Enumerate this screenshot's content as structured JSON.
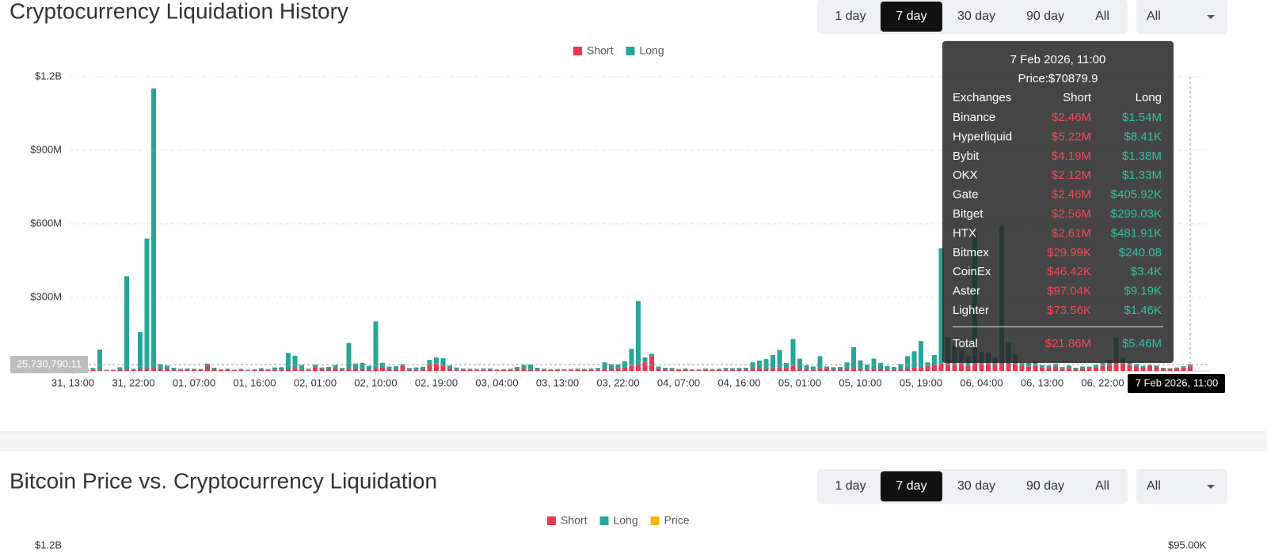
{
  "panels": [
    {
      "title": "Cryptocurrency Liquidation History",
      "ranges": [
        "1 day",
        "7 day",
        "30 day",
        "90 day",
        "All"
      ],
      "active_range": 1,
      "dropdown": "All"
    },
    {
      "title": "Bitcoin Price vs. Cryptocurrency Liquidation",
      "ranges": [
        "1 day",
        "7 day",
        "30 day",
        "90 day",
        "All"
      ],
      "active_range": 1,
      "dropdown": "All"
    }
  ],
  "chart_data": [
    {
      "type": "bar",
      "stacked": true,
      "grid": true,
      "categories": [
        "31, 13:00",
        null,
        null,
        null,
        null,
        null,
        null,
        null,
        null,
        "31, 22:00",
        null,
        null,
        null,
        null,
        null,
        null,
        null,
        null,
        "01, 07:00",
        null,
        null,
        null,
        null,
        null,
        null,
        null,
        null,
        "01, 16:00",
        null,
        null,
        null,
        null,
        null,
        null,
        null,
        null,
        "02, 01:00",
        null,
        null,
        null,
        null,
        null,
        null,
        null,
        null,
        "02, 10:00",
        null,
        null,
        null,
        null,
        null,
        null,
        null,
        null,
        "02, 19:00",
        null,
        null,
        null,
        null,
        null,
        null,
        null,
        null,
        "03, 04:00",
        null,
        null,
        null,
        null,
        null,
        null,
        null,
        null,
        "03, 13:00",
        null,
        null,
        null,
        null,
        null,
        null,
        null,
        null,
        "03, 22:00",
        null,
        null,
        null,
        null,
        null,
        null,
        null,
        null,
        "04, 07:00",
        null,
        null,
        null,
        null,
        null,
        null,
        null,
        null,
        "04, 16:00",
        null,
        null,
        null,
        null,
        null,
        null,
        null,
        null,
        "05, 01:00",
        null,
        null,
        null,
        null,
        null,
        null,
        null,
        null,
        "05, 10:00",
        null,
        null,
        null,
        null,
        null,
        null,
        null,
        null,
        "05, 19:00",
        null,
        null,
        null,
        null,
        null,
        null,
        null,
        null,
        "06, 04:00",
        null,
        null,
        null,
        null,
        null,
        null,
        null,
        null,
        "06, 13:00",
        null,
        null,
        null,
        null,
        null,
        null,
        null,
        null,
        "06, 22:00",
        null,
        null,
        null,
        null,
        null,
        null,
        null,
        null,
        null,
        null,
        null,
        null,
        null
      ],
      "series": [
        {
          "name": "Short",
          "color": "#e8384f",
          "values": [
            2000000,
            3000000,
            2000000,
            4000000,
            3000000,
            2000000,
            3000000,
            5000000,
            6000000,
            4000000,
            8000000,
            10000000,
            12000000,
            8000000,
            10000000,
            5000000,
            4000000,
            6000000,
            3000000,
            5000000,
            22000000,
            8000000,
            4000000,
            5000000,
            3000000,
            4000000,
            2000000,
            3000000,
            5000000,
            4000000,
            6000000,
            5000000,
            8000000,
            12000000,
            6000000,
            4000000,
            15000000,
            10000000,
            8000000,
            12000000,
            6000000,
            9000000,
            10000000,
            8000000,
            6000000,
            12000000,
            15000000,
            8000000,
            5000000,
            20000000,
            6000000,
            4000000,
            8000000,
            25000000,
            30000000,
            22000000,
            10000000,
            6000000,
            4000000,
            5000000,
            3000000,
            4000000,
            6000000,
            3000000,
            5000000,
            4000000,
            8000000,
            10000000,
            6000000,
            5000000,
            4000000,
            3000000,
            5000000,
            2000000,
            4000000,
            3000000,
            5000000,
            6000000,
            4000000,
            10000000,
            8000000,
            12000000,
            15000000,
            20000000,
            25000000,
            35000000,
            60000000,
            10000000,
            8000000,
            6000000,
            4000000,
            5000000,
            3000000,
            2000000,
            4000000,
            3000000,
            5000000,
            4000000,
            6000000,
            8000000,
            5000000,
            10000000,
            12000000,
            8000000,
            10000000,
            15000000,
            12000000,
            20000000,
            10000000,
            8000000,
            6000000,
            10000000,
            12000000,
            5000000,
            8000000,
            10000000,
            12000000,
            8000000,
            6000000,
            10000000,
            8000000,
            5000000,
            6000000,
            8000000,
            10000000,
            15000000,
            12000000,
            20000000,
            25000000,
            30000000,
            28000000,
            25000000,
            30000000,
            22000000,
            35000000,
            28000000,
            30000000,
            25000000,
            40000000,
            35000000,
            28000000,
            22000000,
            18000000,
            20000000,
            15000000,
            12000000,
            18000000,
            10000000,
            12000000,
            8000000,
            10000000,
            12000000,
            15000000,
            20000000,
            25000000,
            55000000,
            30000000,
            22000000,
            18000000,
            15000000,
            20000000,
            18000000,
            10000000,
            8000000,
            12000000,
            15000000,
            21860000
          ]
        },
        {
          "name": "Long",
          "color": "#26a69a",
          "values": [
            2000000,
            3000000,
            4000000,
            8000000,
            84000000,
            3000000,
            2000000,
            10000000,
            380000000,
            5000000,
            150000000,
            530000000,
            1140000000,
            20000000,
            12000000,
            8000000,
            5000000,
            4000000,
            6000000,
            3000000,
            8000000,
            5000000,
            3000000,
            4000000,
            2000000,
            5000000,
            3000000,
            4000000,
            6000000,
            4000000,
            8000000,
            10000000,
            65000000,
            50000000,
            18000000,
            5000000,
            10000000,
            4000000,
            8000000,
            12000000,
            6000000,
            105000000,
            20000000,
            25000000,
            15000000,
            190000000,
            18000000,
            10000000,
            14000000,
            8000000,
            6000000,
            10000000,
            9000000,
            20000000,
            25000000,
            30000000,
            12000000,
            8000000,
            6000000,
            4000000,
            5000000,
            6000000,
            4000000,
            3000000,
            2000000,
            5000000,
            8000000,
            15000000,
            20000000,
            8000000,
            5000000,
            4000000,
            3000000,
            5000000,
            4000000,
            6000000,
            3000000,
            4000000,
            8000000,
            25000000,
            20000000,
            15000000,
            25000000,
            70000000,
            260000000,
            20000000,
            10000000,
            8000000,
            5000000,
            6000000,
            4000000,
            5000000,
            3000000,
            4000000,
            6000000,
            5000000,
            4000000,
            8000000,
            5000000,
            4000000,
            8000000,
            25000000,
            30000000,
            40000000,
            55000000,
            70000000,
            20000000,
            110000000,
            40000000,
            15000000,
            12000000,
            50000000,
            6000000,
            10000000,
            8000000,
            25000000,
            85000000,
            35000000,
            20000000,
            40000000,
            25000000,
            15000000,
            10000000,
            20000000,
            50000000,
            65000000,
            110000000,
            15000000,
            40000000,
            470000000,
            110000000,
            80000000,
            60000000,
            40000000,
            530000000,
            50000000,
            45000000,
            30000000,
            550000000,
            80000000,
            40000000,
            10000000,
            15000000,
            20000000,
            8000000,
            10000000,
            12000000,
            6000000,
            10000000,
            5000000,
            8000000,
            6000000,
            10000000,
            15000000,
            20000000,
            80000000,
            25000000,
            15000000,
            10000000,
            6000000,
            5000000,
            4000000,
            3000000,
            3000000,
            2000000,
            4000000,
            5460000
          ]
        }
      ],
      "ylim": [
        0,
        1200000000
      ],
      "yticks": [
        {
          "value": 300000000,
          "label": "$300M"
        },
        {
          "value": 600000000,
          "label": "$600M"
        },
        {
          "value": 900000000,
          "label": "$900M"
        },
        {
          "value": 1200000000,
          "label": "$1.2B"
        }
      ],
      "crosshair": {
        "y": {
          "value": 25730790.11,
          "label": "25,730,790.11"
        },
        "x_label": "7 Feb 2026, 11:00"
      }
    },
    {
      "type": "bar",
      "stacked": true,
      "series": [
        {
          "name": "Short",
          "color": "#e8384f"
        },
        {
          "name": "Long",
          "color": "#26a69a"
        },
        {
          "name": "Price",
          "color": "#f0b90b",
          "axis": "y2"
        }
      ],
      "ylim": [
        0,
        1200000000
      ],
      "yticks": [
        {
          "value": 1200000000,
          "label": "$1.2B"
        }
      ],
      "y2ticks": [
        {
          "value": 95000,
          "label": "$95.00K"
        }
      ]
    }
  ],
  "tooltip": {
    "date": "7 Feb 2026, 11:00",
    "price": "Price:$70879.9",
    "header": [
      "Exchanges",
      "Short",
      "Long"
    ],
    "rows": [
      [
        "Binance",
        "$2.46M",
        "$1.54M"
      ],
      [
        "Hyperliquid",
        "$5.22M",
        "$8.41K"
      ],
      [
        "Bybit",
        "$4.19M",
        "$1.38M"
      ],
      [
        "OKX",
        "$2.12M",
        "$1.33M"
      ],
      [
        "Gate",
        "$2.46M",
        "$405.92K"
      ],
      [
        "Bitget",
        "$2.56M",
        "$299.03K"
      ],
      [
        "HTX",
        "$2.61M",
        "$481.91K"
      ],
      [
        "Bitmex",
        "$29.99K",
        "$240.08"
      ],
      [
        "CoinEx",
        "$46.42K",
        "$3.4K"
      ],
      [
        "Aster",
        "$97.04K",
        "$9.19K"
      ],
      [
        "Lighter",
        "$73.56K",
        "$1.46K"
      ]
    ],
    "total": [
      "Total",
      "$21.86M",
      "$5.46M"
    ]
  }
}
